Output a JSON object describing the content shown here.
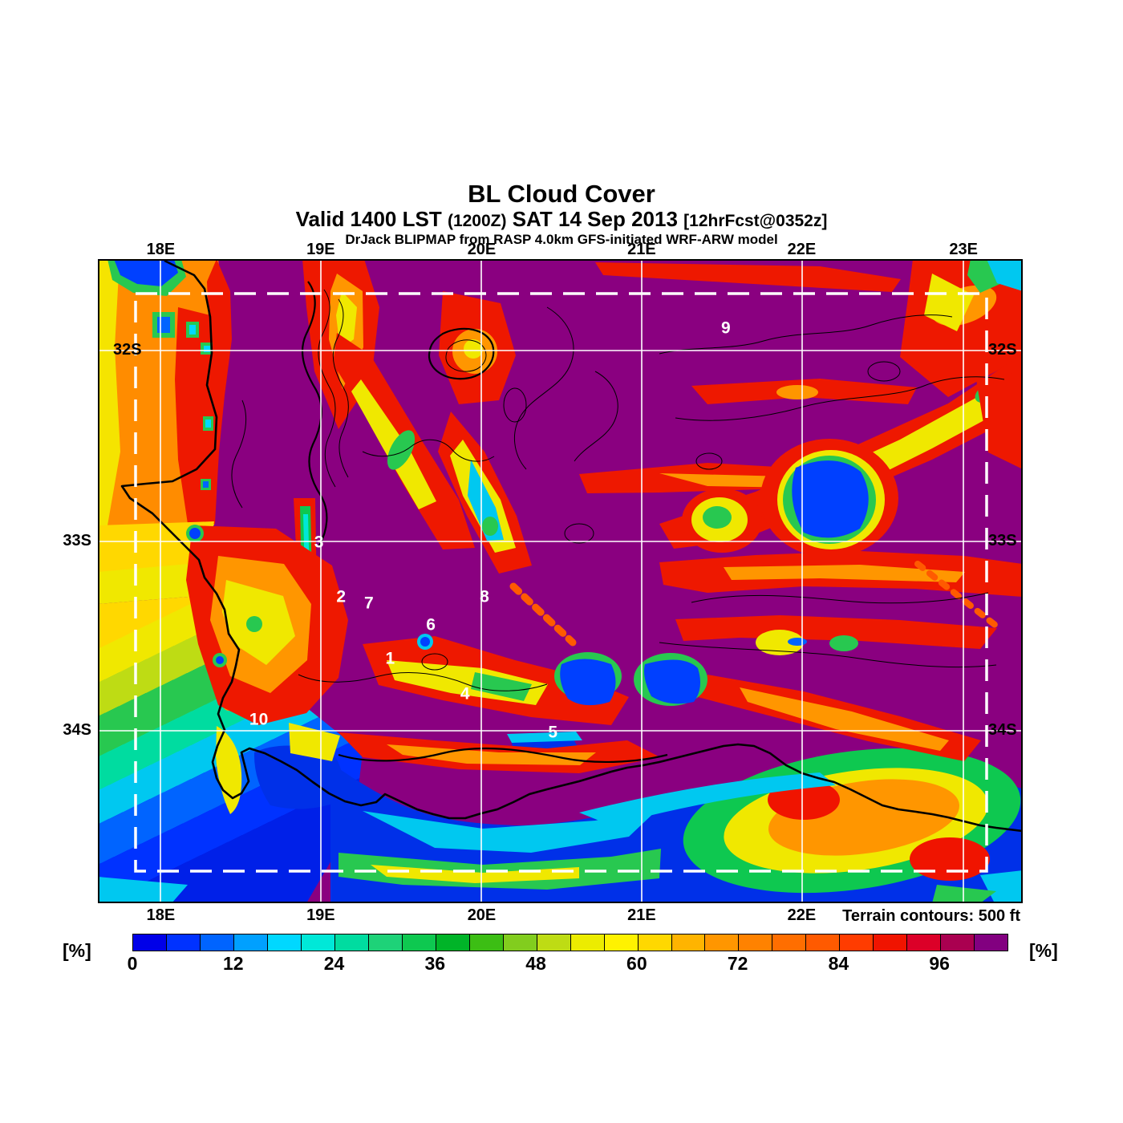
{
  "header": {
    "title": "BL Cloud Cover",
    "valid_main": "Valid 1400 LST",
    "valid_zulu": "(1200Z)",
    "valid_date": "SAT 14 Sep 2013",
    "valid_fcst": "[12hrFcst@0352z]",
    "model_line": "DrJack BLIPMAP from RASP 4.0km GFS-initiated WRF-ARW model"
  },
  "map": {
    "note": "Terrain contours: 500 ft",
    "top_ticks": [
      {
        "label": "18E",
        "pos": 6.8
      },
      {
        "label": "19E",
        "pos": 24.1
      },
      {
        "label": "20E",
        "pos": 41.5
      },
      {
        "label": "21E",
        "pos": 58.8
      },
      {
        "label": "22E",
        "pos": 76.1
      },
      {
        "label": "23E",
        "pos": 93.6
      }
    ],
    "bottom_ticks": [
      {
        "label": "18E",
        "pos": 6.8
      },
      {
        "label": "19E",
        "pos": 24.1
      },
      {
        "label": "20E",
        "pos": 41.5
      },
      {
        "label": "21E",
        "pos": 58.8
      },
      {
        "label": "22E",
        "pos": 76.1
      }
    ],
    "left_ticks": [
      {
        "label": "32S",
        "pos": 14.2,
        "inside": true
      },
      {
        "label": "33S",
        "pos": 43.8
      },
      {
        "label": "34S",
        "pos": 73.2
      }
    ],
    "right_ticks": [
      {
        "label": "32S",
        "pos": 14.2
      },
      {
        "label": "33S",
        "pos": 43.8
      },
      {
        "label": "34S",
        "pos": 73.2
      }
    ],
    "markers": [
      {
        "label": "1",
        "x": 31.6,
        "y": 62.1
      },
      {
        "label": "2",
        "x": 26.3,
        "y": 52.6
      },
      {
        "label": "3",
        "x": 23.9,
        "y": 44.1
      },
      {
        "label": "4",
        "x": 39.7,
        "y": 67.6
      },
      {
        "label": "5",
        "x": 49.2,
        "y": 73.6
      },
      {
        "label": "6",
        "x": 36.0,
        "y": 56.9
      },
      {
        "label": "7",
        "x": 29.3,
        "y": 53.5
      },
      {
        "label": "8",
        "x": 41.8,
        "y": 52.6
      },
      {
        "label": "9",
        "x": 67.9,
        "y": 10.8
      },
      {
        "label": "10",
        "x": 17.4,
        "y": 71.6
      }
    ]
  },
  "colorbar": {
    "unit_left": "[%]",
    "unit_right": "[%]",
    "min": 0,
    "max": 104,
    "cell_step": 4,
    "tick_labels": [
      "0",
      "12",
      "24",
      "36",
      "48",
      "60",
      "72",
      "84",
      "96"
    ],
    "tick_values": [
      0,
      12,
      24,
      36,
      48,
      60,
      72,
      84,
      96
    ],
    "colors": [
      "#0000e8",
      "#0032ff",
      "#0064ff",
      "#00a0ff",
      "#00d8ff",
      "#00e8d8",
      "#00dca0",
      "#1ed278",
      "#0ec850",
      "#00b428",
      "#3cbe14",
      "#82cd1e",
      "#bedc14",
      "#ecec00",
      "#fff200",
      "#ffd800",
      "#ffb400",
      "#ff9600",
      "#ff8200",
      "#ff6e00",
      "#ff5a00",
      "#ff3c00",
      "#f01400",
      "#dc0028",
      "#aa0050",
      "#820080"
    ]
  },
  "chart_data": {
    "type": "heatmap",
    "title": "BL Cloud Cover",
    "units": "%",
    "scale_min": 0,
    "scale_max": 104,
    "scale_step": 4,
    "x_axis_labels": [
      "18E",
      "19E",
      "20E",
      "21E",
      "22E",
      "23E"
    ],
    "y_axis_labels": [
      "32S",
      "33S",
      "34S"
    ],
    "legend_position": "bottom",
    "annotations": [
      "1",
      "2",
      "3",
      "4",
      "5",
      "6",
      "7",
      "8",
      "9",
      "10"
    ],
    "footnote": "Terrain contours: 500 ft"
  }
}
